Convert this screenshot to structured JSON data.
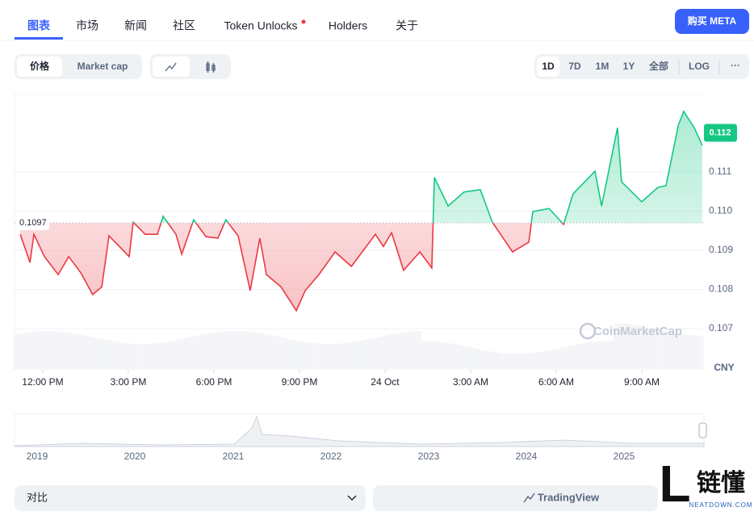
{
  "tabs": [
    "图表",
    "市场",
    "新闻",
    "社区",
    "Token Unlocks",
    "Holders",
    "关于"
  ],
  "buy_button": "购买 META",
  "price_toggle": [
    "价格",
    "Market cap"
  ],
  "ranges": [
    "1D",
    "7D",
    "1M",
    "1Y",
    "全部",
    "LOG"
  ],
  "more": "···",
  "chart_data": {
    "type": "line",
    "x": [
      11.21,
      11.55,
      11.69,
      12.06,
      12.54,
      12.91,
      13.33,
      13.75,
      14.07,
      14.32,
      15.03,
      15.17,
      15.59,
      16.02,
      16.22,
      16.67,
      16.87,
      17.29,
      17.72,
      18.14,
      18.42,
      18.85,
      19.27,
      19.61,
      19.84,
      20.35,
      20.89,
      21.2,
      21.68,
      22.25,
      22.82,
      23.66,
      23.94,
      24.23,
      24.65,
      25.22,
      25.64,
      25.73,
      26.21,
      26.77,
      27.34,
      27.76,
      28.05,
      28.47,
      29.04,
      29.18,
      29.75,
      30.26,
      30.59,
      31.36,
      31.59,
      32.15,
      32.29,
      33.0,
      33.57,
      33.85,
      34.28,
      34.47,
      34.84,
      35.12
    ],
    "series": [
      {
        "color": "#16c784",
        "values": [
          0.10941,
          0.10869,
          0.10941,
          0.10884,
          0.10838,
          0.10884,
          0.10843,
          0.10787,
          0.10807,
          0.10937,
          0.10884,
          0.10972,
          0.10941,
          0.10941,
          0.10987,
          0.10941,
          0.1089,
          0.10978,
          0.10935,
          0.10931,
          0.10978,
          0.10937,
          0.10797,
          0.10931,
          0.10838,
          0.10807,
          0.10746,
          0.10797,
          0.10838,
          0.10896,
          0.10859,
          0.10941,
          0.1091,
          0.10945,
          0.10849,
          0.10896,
          0.10855,
          0.11086,
          0.11013,
          0.11049,
          0.11055,
          0.10972,
          0.10941,
          0.10896,
          0.10921,
          0.10999,
          0.11007,
          0.10966,
          0.11044,
          0.11102,
          0.11013,
          0.11213,
          0.11075,
          0.11024,
          0.11061,
          0.11065,
          0.11219,
          0.11255,
          0.11213,
          0.11168
        ]
      }
    ],
    "below_color": "#ea3943",
    "baseline": 0.1097,
    "last_price": 0.112,
    "xlim": [
      11.01,
      35.18
    ],
    "ylim": [
      0.10595,
      0.11298
    ],
    "yticks": [
      0.107,
      0.108,
      0.109,
      0.11,
      0.111
    ],
    "ytick_labels": [
      "0.107",
      "0.108",
      "0.109",
      "0.110",
      "0.111"
    ],
    "xticks": [
      {
        "value": 12,
        "label": "12:00 PM"
      },
      {
        "value": 15,
        "label": "3:00 PM"
      },
      {
        "value": 18,
        "label": "6:00 PM"
      },
      {
        "value": 21,
        "label": "9:00 PM"
      },
      {
        "value": 24,
        "label": "24 Oct"
      },
      {
        "value": 27,
        "label": "3:00 AM"
      },
      {
        "value": 30,
        "label": "6:00 AM"
      },
      {
        "value": 33,
        "label": "9:00 AM"
      }
    ],
    "currency": "CNY",
    "watermark": "CoinMarketCap",
    "grid": true
  },
  "navigator_years": [
    "2019",
    "2020",
    "2021",
    "2022",
    "2023",
    "2024",
    "2025"
  ],
  "compare": "对比",
  "tradingview": "TradingView",
  "logo": {
    "mark": "L",
    "name": "链懂",
    "site": "NEATDOWN.COM"
  }
}
